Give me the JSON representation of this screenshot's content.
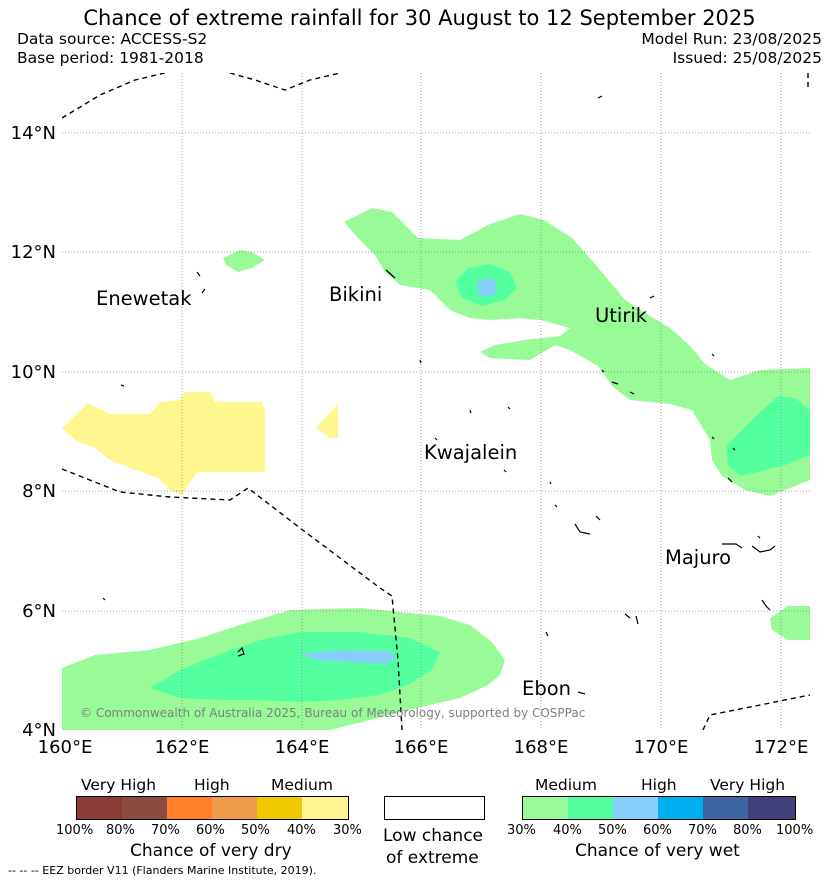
{
  "header": {
    "title": "Chance of extreme rainfall for 30 August to 12 September 2025",
    "data_source": "Data source: ACCESS-S2",
    "base_period": "Base period: 1981-2018",
    "model_run": "Model Run: 23/08/2025",
    "issued": "Issued: 25/08/2025"
  },
  "map": {
    "lat_ticks": [
      "14°N",
      "12°N",
      "10°N",
      "8°N",
      "6°N",
      "4°N"
    ],
    "lon_ticks": [
      "160°E",
      "162°E",
      "164°E",
      "166°E",
      "168°E",
      "170°E",
      "172°E"
    ],
    "places": [
      "Enewetak",
      "Bikini",
      "Utirik",
      "Kwajalein",
      "Majuro",
      "Ebon"
    ],
    "copyright": "© Commonwealth of Australia 2025, Bureau of Meteorology, supported by COSPPac",
    "colors": {
      "wet_30_40": "#98fb98",
      "wet_40_50": "#54ffa0",
      "wet_50_60": "#87cefa",
      "dry_40_30": "#fef68f",
      "coast": "#000000",
      "grid": "#888888"
    }
  },
  "legend": {
    "dry": {
      "categories": [
        "Very High",
        "High",
        "Medium"
      ],
      "ticks": [
        "100%",
        "80%",
        "70%",
        "60%",
        "50%",
        "40%",
        "30%"
      ],
      "colors": [
        "#8b3a35",
        "#8b4c3f",
        "#ff7f2a",
        "#ee9c4c",
        "#f0c800",
        "#fff68f"
      ],
      "title": "Chance of very dry"
    },
    "low": {
      "title_line1": "Low chance",
      "title_line2": "of extreme"
    },
    "wet": {
      "categories": [
        "Medium",
        "High",
        "Very High"
      ],
      "ticks": [
        "30%",
        "40%",
        "50%",
        "60%",
        "70%",
        "80%",
        "100%"
      ],
      "colors": [
        "#98fb98",
        "#54ffa0",
        "#87cefa",
        "#00b0f0",
        "#3a65a0",
        "#3f3f7a"
      ],
      "title": "Chance of very wet"
    }
  },
  "footnote": "--  --  -- EEZ border V11 (Flanders Marine Institute, 2019)."
}
